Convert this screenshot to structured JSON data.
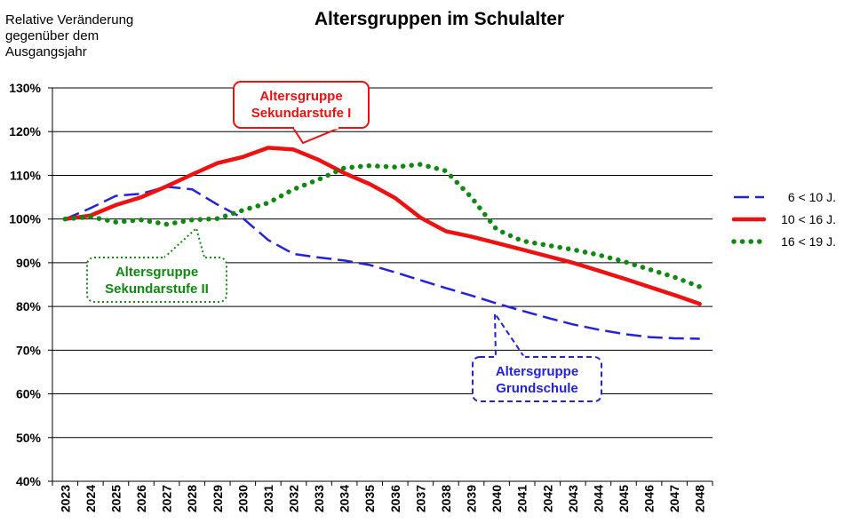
{
  "chart_data": {
    "type": "line",
    "title": "Altersgruppen im Schulalter",
    "ylabel_lines": [
      "Relative Veränderung",
      "gegenüber dem",
      "Ausgangsjahr"
    ],
    "xlabel": "",
    "ylim": [
      40,
      130
    ],
    "yticks": [
      40,
      50,
      60,
      70,
      80,
      90,
      100,
      110,
      120,
      130
    ],
    "ytick_labels": [
      "40%",
      "50%",
      "60%",
      "70%",
      "80%",
      "90%",
      "100%",
      "110%",
      "120%",
      "130%"
    ],
    "grid": true,
    "legend_position": "right",
    "x": [
      "2023",
      "2024",
      "2025",
      "2026",
      "2027",
      "2028",
      "2029",
      "2030",
      "2031",
      "2032",
      "2033",
      "2034",
      "2035",
      "2036",
      "2037",
      "2038",
      "2039",
      "2040",
      "2041",
      "2042",
      "2043",
      "2044",
      "2045",
      "2046",
      "2047",
      "2048"
    ],
    "series": [
      {
        "name": "6 < 10 J.",
        "style": "dash",
        "color": "#2222dd",
        "values": [
          100,
          102.5,
          105.3,
          105.8,
          107.4,
          106.8,
          103.3,
          100.2,
          95.2,
          92.0,
          91.2,
          90.5,
          89.5,
          87.8,
          86.0,
          84.2,
          82.5,
          80.7,
          79.0,
          77.4,
          75.9,
          74.7,
          73.7,
          73.0,
          72.7,
          72.6
        ]
      },
      {
        "name": "10 < 16 J.",
        "style": "solid",
        "color": "#ee1111",
        "values": [
          100,
          100.8,
          103.2,
          105.0,
          107.5,
          110.2,
          112.8,
          114.2,
          116.3,
          115.9,
          113.5,
          110.5,
          108.0,
          104.8,
          100.3,
          97.2,
          96.0,
          94.5,
          93.0,
          91.5,
          90.0,
          88.2,
          86.4,
          84.5,
          82.6,
          80.6
        ]
      },
      {
        "name": "16 < 19 J.",
        "style": "dot",
        "color": "#118811",
        "values": [
          100,
          100.5,
          99.3,
          99.8,
          98.8,
          99.8,
          100.1,
          102.0,
          103.7,
          106.8,
          109.1,
          111.7,
          112.2,
          111.9,
          112.5,
          111.0,
          105.0,
          97.6,
          95.0,
          94.0,
          93.0,
          91.8,
          90.3,
          88.5,
          86.7,
          84.5
        ]
      }
    ],
    "annotations": [
      {
        "lines": [
          "Altersgruppe",
          "Sekundarstufe I"
        ],
        "color": "#ee1111"
      },
      {
        "lines": [
          "Altersgruppe",
          "Sekundarstufe II"
        ],
        "color": "#118811"
      },
      {
        "lines": [
          "Altersgruppe",
          "Grundschule"
        ],
        "color": "#2222dd"
      }
    ]
  }
}
